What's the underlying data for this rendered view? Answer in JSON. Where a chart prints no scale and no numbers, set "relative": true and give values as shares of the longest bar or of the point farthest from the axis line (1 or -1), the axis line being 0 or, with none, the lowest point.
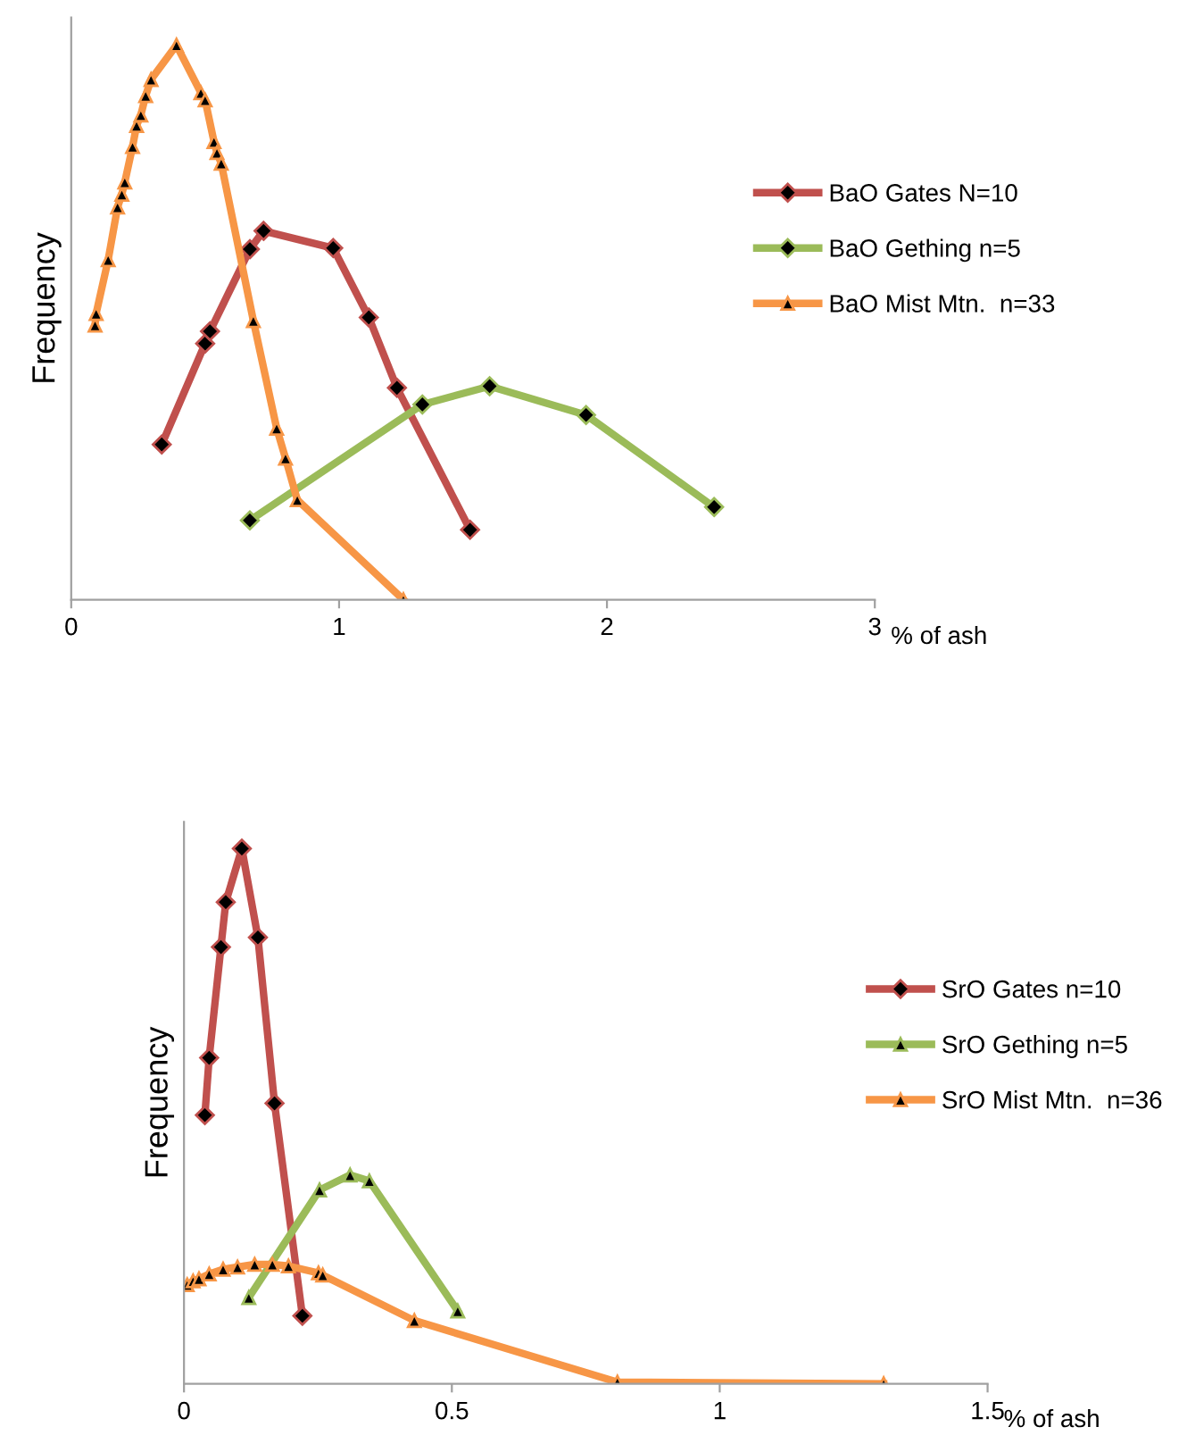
{
  "chart_data": [
    {
      "type": "line",
      "relative": true,
      "xlabel": "% of ash",
      "ylabel": "Frequency",
      "xlim": [
        0,
        3
      ],
      "xticks": [
        0,
        1,
        2,
        3
      ],
      "legend": "right",
      "line_style": "solid",
      "grid": false,
      "series": [
        {
          "name": "BaO Gates N=10",
          "color": "#c0504d",
          "marker": "diamond",
          "x": [
            0.338,
            0.5,
            0.518,
            0.667,
            0.718,
            0.978,
            1.111,
            1.216,
            1.489
          ],
          "values": [
            0.28,
            0.462,
            0.484,
            0.632,
            0.665,
            0.634,
            0.509,
            0.382,
            0.126
          ]
        },
        {
          "name": "BaO Gething n=5",
          "color": "#9bbb59",
          "marker": "diamond",
          "x": [
            0.667,
            1.311,
            1.562,
            1.922,
            2.4
          ],
          "values": [
            0.143,
            0.352,
            0.385,
            0.333,
            0.167
          ]
        },
        {
          "name": "BaO Mist Mtn.  n=33",
          "color": "#f79646",
          "marker": "triangle",
          "x": [
            0.089,
            0.093,
            0.138,
            0.173,
            0.189,
            0.2,
            0.229,
            0.244,
            0.26,
            0.278,
            0.298,
            0.393,
            0.484,
            0.5,
            0.533,
            0.544,
            0.56,
            0.68,
            0.767,
            0.8,
            0.844,
            1.24
          ],
          "values": [
            0.495,
            0.516,
            0.613,
            0.708,
            0.731,
            0.753,
            0.817,
            0.855,
            0.874,
            0.909,
            0.938,
            1.0,
            0.914,
            0.901,
            0.826,
            0.806,
            0.787,
            0.503,
            0.309,
            0.255,
            0.18,
            0.0
          ]
        }
      ]
    },
    {
      "type": "line",
      "relative": true,
      "xlabel": "% of ash",
      "ylabel": "Frequency",
      "xlim": [
        0,
        1.5
      ],
      "xticks": [
        0,
        0.5,
        1,
        1.5
      ],
      "legend": "right",
      "line_style": "solid",
      "grid": false,
      "series": [
        {
          "name": "SrO Gates n=10",
          "color": "#c0504d",
          "marker": "diamond",
          "x": [
            0.039,
            0.047,
            0.069,
            0.078,
            0.108,
            0.138,
            0.169,
            0.221
          ],
          "values": [
            0.502,
            0.609,
            0.816,
            0.9,
            1.0,
            0.834,
            0.524,
            0.127
          ]
        },
        {
          "name": "SrO Gething n=5",
          "color": "#9bbb59",
          "marker": "triangle",
          "x": [
            0.121,
            0.253,
            0.31,
            0.346,
            0.511
          ],
          "values": [
            0.161,
            0.362,
            0.39,
            0.379,
            0.136
          ]
        },
        {
          "name": "SrO Mist Mtn.  n=36",
          "color": "#f79646",
          "marker": "triangle",
          "x": [
            0.006,
            0.017,
            0.028,
            0.047,
            0.073,
            0.1,
            0.132,
            0.165,
            0.195,
            0.251,
            0.259,
            0.43,
            0.809,
            1.306
          ],
          "values": [
            0.185,
            0.192,
            0.196,
            0.205,
            0.214,
            0.218,
            0.223,
            0.223,
            0.22,
            0.207,
            0.203,
            0.118,
            0.003,
            0.0
          ]
        }
      ]
    }
  ]
}
